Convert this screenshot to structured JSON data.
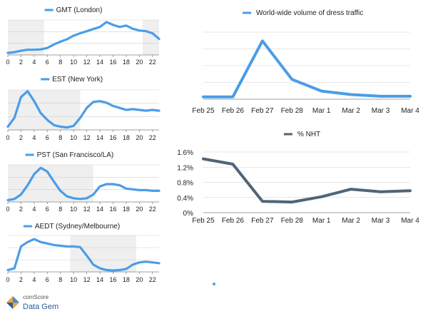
{
  "colors": {
    "blue": "#4a9de8",
    "slate": "#4f6578",
    "shade": "#efefef",
    "grid": "#cfcfcf",
    "text": "#222222"
  },
  "logo": {
    "top": "comScore",
    "bottom": "Data Gem"
  },
  "chart_data": [
    {
      "type": "line",
      "title": "GMT (London)",
      "x": [
        0,
        1,
        2,
        3,
        4,
        5,
        6,
        7,
        8,
        9,
        10,
        11,
        12,
        13,
        14,
        15,
        16,
        17,
        18,
        19,
        20,
        21,
        22,
        23
      ],
      "tick_labels": [
        "0",
        "2",
        "4",
        "6",
        "8",
        "10",
        "12",
        "14",
        "16",
        "18",
        "20",
        "22"
      ],
      "tick_values": [
        0,
        2,
        4,
        6,
        8,
        10,
        12,
        14,
        16,
        18,
        20,
        22
      ],
      "values": [
        0.06,
        0.08,
        0.12,
        0.15,
        0.15,
        0.16,
        0.2,
        0.3,
        0.38,
        0.45,
        0.55,
        0.62,
        0.68,
        0.74,
        0.8,
        0.94,
        0.86,
        0.8,
        0.84,
        0.75,
        0.7,
        0.68,
        0.62,
        0.46
      ],
      "ylim": [
        0,
        1
      ],
      "shaded_ranges": [
        [
          0,
          5.5
        ],
        [
          20.5,
          23
        ]
      ],
      "grid": true
    },
    {
      "type": "line",
      "title": "EST (New York)",
      "x": [
        0,
        1,
        2,
        3,
        4,
        5,
        6,
        7,
        8,
        9,
        10,
        11,
        12,
        13,
        14,
        15,
        16,
        17,
        18,
        19,
        20,
        21,
        22,
        23
      ],
      "tick_labels": [
        "0",
        "2",
        "4",
        "6",
        "8",
        "10",
        "12",
        "14",
        "16",
        "18",
        "20",
        "22"
      ],
      "tick_values": [
        0,
        2,
        4,
        6,
        8,
        10,
        12,
        14,
        16,
        18,
        20,
        22
      ],
      "values": [
        0.08,
        0.3,
        0.82,
        0.97,
        0.72,
        0.42,
        0.25,
        0.12,
        0.08,
        0.06,
        0.1,
        0.3,
        0.55,
        0.7,
        0.72,
        0.68,
        0.6,
        0.55,
        0.5,
        0.52,
        0.5,
        0.48,
        0.5,
        0.48
      ],
      "ylim": [
        0,
        1
      ],
      "shaded_ranges": [
        [
          0,
          11
        ]
      ],
      "grid": true
    },
    {
      "type": "line",
      "title": "PST (San Francisco/LA)",
      "x": [
        0,
        1,
        2,
        3,
        4,
        5,
        6,
        7,
        8,
        9,
        10,
        11,
        12,
        13,
        14,
        15,
        16,
        17,
        18,
        19,
        20,
        21,
        22,
        23
      ],
      "tick_labels": [
        "0",
        "2",
        "4",
        "6",
        "8",
        "10",
        "12",
        "14",
        "16",
        "18",
        "20",
        "22"
      ],
      "tick_values": [
        0,
        2,
        4,
        6,
        8,
        10,
        12,
        14,
        16,
        18,
        20,
        22
      ],
      "values": [
        0.05,
        0.08,
        0.2,
        0.45,
        0.75,
        0.92,
        0.82,
        0.55,
        0.3,
        0.15,
        0.1,
        0.08,
        0.1,
        0.2,
        0.42,
        0.48,
        0.48,
        0.45,
        0.36,
        0.34,
        0.32,
        0.32,
        0.3,
        0.3
      ],
      "ylim": [
        0,
        1
      ],
      "shaded_ranges": [
        [
          0,
          13
        ]
      ],
      "grid": true
    },
    {
      "type": "line",
      "title": "AEDT (Sydney/Melbourne)",
      "x": [
        0,
        1,
        2,
        3,
        4,
        5,
        6,
        7,
        8,
        9,
        10,
        11,
        12,
        13,
        14,
        15,
        16,
        17,
        18,
        19,
        20,
        21,
        22,
        23
      ],
      "tick_labels": [
        "0",
        "2",
        "4",
        "6",
        "8",
        "10",
        "12",
        "14",
        "16",
        "18",
        "20",
        "22"
      ],
      "tick_values": [
        0,
        2,
        4,
        6,
        8,
        10,
        12,
        14,
        16,
        18,
        20,
        22
      ],
      "values": [
        0.05,
        0.1,
        0.7,
        0.82,
        0.9,
        0.82,
        0.78,
        0.74,
        0.72,
        0.7,
        0.7,
        0.68,
        0.45,
        0.2,
        0.1,
        0.05,
        0.04,
        0.05,
        0.08,
        0.2,
        0.26,
        0.28,
        0.26,
        0.24
      ],
      "ylim": [
        0,
        1
      ],
      "shaded_ranges": [
        [
          9.5,
          19.5
        ]
      ],
      "grid": true
    },
    {
      "type": "line",
      "title": "World-wide volume of dress traffic",
      "categories": [
        "Feb 25",
        "Feb 26",
        "Feb 27",
        "Feb 28",
        "Mar 1",
        "Mar 2",
        "Mar 3",
        "Mar 4"
      ],
      "values": [
        0.04,
        0.04,
        1.0,
        0.34,
        0.14,
        0.08,
        0.05,
        0.05
      ],
      "ylim": [
        0,
        1.15
      ],
      "grid": true
    },
    {
      "type": "line",
      "title": "% NHT",
      "categories": [
        "Feb 25",
        "Feb 26",
        "Feb 27",
        "Feb 28",
        "Mar 1",
        "Mar 2",
        "Mar 3",
        "Mar 4"
      ],
      "values": [
        1.42,
        1.28,
        0.3,
        0.28,
        0.42,
        0.62,
        0.55,
        0.58
      ],
      "y_ticks": [
        "1.6%",
        "1.2%",
        "0.8%",
        "0.4%",
        "0%"
      ],
      "y_tick_values": [
        1.6,
        1.2,
        0.8,
        0.4,
        0
      ],
      "ylim": [
        0,
        1.6
      ],
      "grid": true
    }
  ]
}
